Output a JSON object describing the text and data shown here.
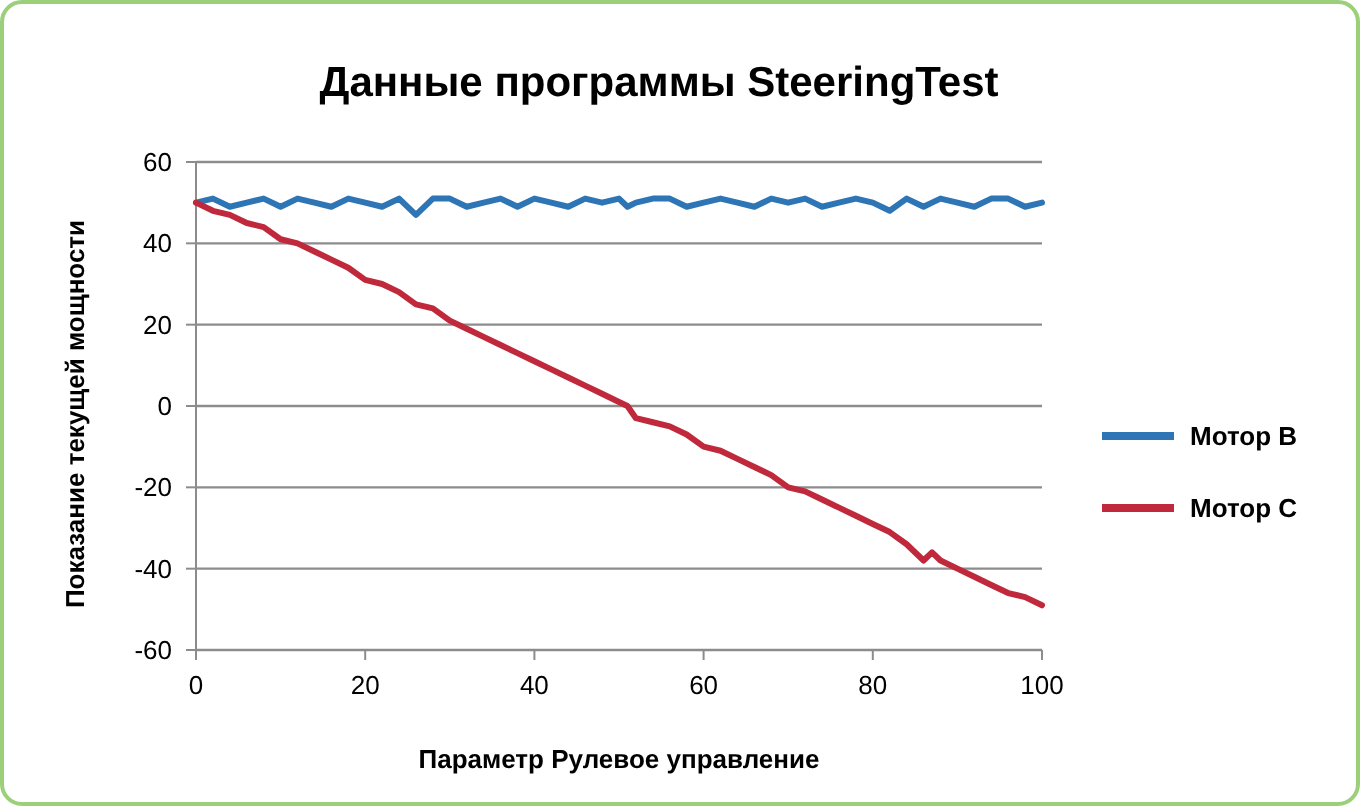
{
  "chart_data": {
    "type": "line",
    "title": "Данные программы SteeringTest",
    "xlabel": "Параметр Рулевое управление",
    "ylabel": "Показание текущей мощности",
    "x": [
      0,
      2,
      4,
      6,
      8,
      10,
      12,
      14,
      16,
      18,
      20,
      22,
      24,
      26,
      28,
      30,
      32,
      34,
      36,
      38,
      40,
      42,
      44,
      46,
      48,
      50,
      51,
      52,
      54,
      56,
      58,
      60,
      62,
      64,
      66,
      68,
      70,
      72,
      74,
      76,
      78,
      80,
      82,
      84,
      86,
      87,
      88,
      90,
      92,
      94,
      96,
      98,
      100
    ],
    "series": [
      {
        "name": "Мотор B",
        "color": "#2e75b6",
        "values": [
          50,
          51,
          49,
          50,
          51,
          49,
          51,
          50,
          49,
          51,
          50,
          49,
          51,
          47,
          51,
          51,
          49,
          50,
          51,
          49,
          51,
          50,
          49,
          51,
          50,
          51,
          49,
          50,
          51,
          51,
          49,
          50,
          51,
          50,
          49,
          51,
          50,
          51,
          49,
          50,
          51,
          50,
          48,
          51,
          49,
          50,
          51,
          50,
          49,
          51,
          51,
          49,
          50
        ]
      },
      {
        "name": "Мотор C",
        "color": "#c0283c",
        "values": [
          50,
          48,
          47,
          45,
          44,
          41,
          40,
          38,
          36,
          34,
          31,
          30,
          28,
          25,
          24,
          21,
          19,
          17,
          15,
          13,
          11,
          9,
          7,
          5,
          3,
          1,
          0,
          -3,
          -4,
          -5,
          -7,
          -10,
          -11,
          -13,
          -15,
          -17,
          -20,
          -21,
          -23,
          -25,
          -27,
          -29,
          -31,
          -34,
          -38,
          -36,
          -38,
          -40,
          -42,
          -44,
          -46,
          -47,
          -49
        ]
      }
    ],
    "xlim": [
      0,
      100
    ],
    "xticks": [
      0,
      20,
      40,
      60,
      80,
      100
    ],
    "ylim": [
      -60,
      60
    ],
    "yticks": [
      -60,
      -40,
      -20,
      0,
      20,
      40,
      60
    ],
    "grid": "y",
    "legend": "right",
    "line_style": "solid",
    "marker": "none"
  }
}
